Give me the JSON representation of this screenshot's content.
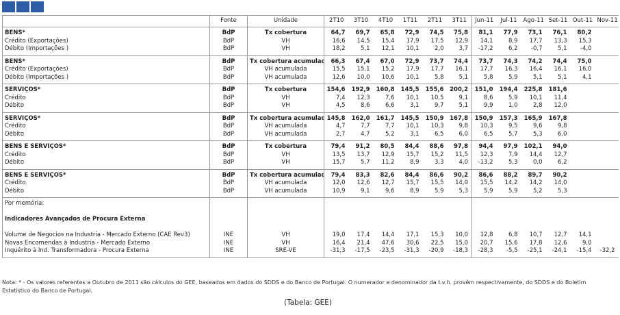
{
  "header": {
    "columns": [
      "Fonte",
      "Unidade",
      "2T10",
      "3T10",
      "4T10",
      "1T11",
      "2T11",
      "3T11",
      "Jun-11",
      "Jul-11",
      "Ago-11",
      "Set-11",
      "Out-11",
      "Nov-11"
    ]
  },
  "sections": [
    {
      "rows": [
        {
          "label": "BENS*",
          "source": "BdP",
          "unit": "Tx cobertura",
          "values": [
            "64,7",
            "69,7",
            "65,8",
            "72,9",
            "74,5",
            "75,8",
            "81,1",
            "77,9",
            "73,1",
            "76,1",
            "80,2",
            null
          ]
        },
        {
          "label": "Crédito (Exportações)",
          "source": "BdP",
          "unit": "VH",
          "values": [
            "16,6",
            "14,5",
            "15,4",
            "17,9",
            "17,5",
            "12,9",
            "14,1",
            "8,9",
            "17,7",
            "13,3",
            "15,3",
            null
          ]
        },
        {
          "label": "Débito (Importações )",
          "source": "BdP",
          "unit": "VH",
          "values": [
            "18,2",
            "5,1",
            "12,1",
            "10,1",
            "2,0",
            "3,7",
            "-17,2",
            "6,2",
            "-0,7",
            "5,1",
            "-4,0",
            null
          ]
        }
      ]
    },
    {
      "rows": [
        {
          "label": "BENS*",
          "source": "BdP",
          "unit": "Tx cobertura acumulada",
          "values": [
            "66,3",
            "67,4",
            "67,0",
            "72,9",
            "73,7",
            "74,4",
            "73,7",
            "74,3",
            "74,2",
            "74,4",
            "75,0",
            null
          ]
        },
        {
          "label": "Crédito (Exportações)",
          "source": "BdP",
          "unit": "VH acumulada",
          "values": [
            "15,5",
            "15,1",
            "15,2",
            "17,9",
            "17,7",
            "16,1",
            "17,7",
            "16,3",
            "16,4",
            "16,1",
            "16,0",
            null
          ]
        },
        {
          "label": "Débito (Importações )",
          "source": "BdP",
          "unit": "VH acumulada",
          "values": [
            "12,6",
            "10,0",
            "10,6",
            "10,1",
            "5,8",
            "5,1",
            "5,8",
            "5,9",
            "5,1",
            "5,1",
            "4,1",
            null
          ]
        }
      ]
    },
    {
      "rows": [
        {
          "label": "SERVIÇOS*",
          "source": "BdP",
          "unit": "Tx cobertura",
          "values": [
            "154,6",
            "192,9",
            "160,8",
            "145,5",
            "155,6",
            "200,2",
            "151,0",
            "194,4",
            "225,8",
            "181,6",
            null,
            null
          ]
        },
        {
          "label": "Crédito",
          "source": "BdP",
          "unit": "VH",
          "values": [
            "7,4",
            "12,3",
            "7,6",
            "10,1",
            "10,5",
            "9,1",
            "8,6",
            "5,9",
            "10,1",
            "11,4",
            null,
            null
          ]
        },
        {
          "label": "Débito",
          "source": "BdP",
          "unit": "VH",
          "values": [
            "4,5",
            "8,6",
            "6,6",
            "3,1",
            "9,7",
            "5,1",
            "9,9",
            "1,0",
            "2,8",
            "12,0",
            null,
            null
          ]
        }
      ]
    },
    {
      "rows": [
        {
          "label": "SERVIÇOS*",
          "source": "BdP",
          "unit": "Tx cobertura acumulada",
          "values": [
            "145,8",
            "162,0",
            "161,7",
            "145,5",
            "150,9",
            "167,8",
            "150,9",
            "157,3",
            "165,9",
            "167,8",
            null,
            null
          ]
        },
        {
          "label": "Crédito",
          "source": "BdP",
          "unit": "VH acumulada",
          "values": [
            "4,7",
            "7,7",
            "7,7",
            "10,1",
            "10,3",
            "9,8",
            "10,3",
            "9,5",
            "9,6",
            "9,8",
            null,
            null
          ]
        },
        {
          "label": "Débito",
          "source": "BdP",
          "unit": "VH acumulada",
          "values": [
            "2,7",
            "4,7",
            "5,2",
            "3,1",
            "6,5",
            "6,0",
            "6,5",
            "5,7",
            "5,3",
            "6,0",
            null,
            null
          ]
        }
      ]
    },
    {
      "rows": [
        {
          "label": "BENS E SERVIÇOS*",
          "source": "BdP",
          "unit": "Tx cobertura",
          "values": [
            "79,4",
            "91,2",
            "80,5",
            "84,4",
            "88,6",
            "97,8",
            "94,4",
            "97,9",
            "102,1",
            "94,0",
            null,
            null
          ]
        },
        {
          "label": "Crédito",
          "source": "BdP",
          "unit": "VH",
          "values": [
            "13,5",
            "13,7",
            "12,9",
            "15,7",
            "15,2",
            "11,5",
            "12,3",
            "7,9",
            "14,4",
            "12,7",
            null,
            null
          ]
        },
        {
          "label": "Débito",
          "source": "BdP",
          "unit": "VH",
          "values": [
            "15,7",
            "5,7",
            "11,2",
            "8,9",
            "3,3",
            "4,0",
            "-13,2",
            "5,3",
            "0,0",
            "6,2",
            null,
            null
          ]
        }
      ]
    },
    {
      "rows": [
        {
          "label": "BENS E SERVIÇOS*",
          "source": "BdP",
          "unit": "Tx cobertura acumulada",
          "values": [
            "79,4",
            "83,3",
            "82,6",
            "84,4",
            "86,6",
            "90,2",
            "86,6",
            "88,2",
            "89,7",
            "90,2",
            null,
            null
          ]
        },
        {
          "label": "Crédito",
          "source": "BdP",
          "unit": "VH acumulada",
          "values": [
            "12,0",
            "12,6",
            "12,7",
            "15,7",
            "15,5",
            "14,0",
            "15,5",
            "14,2",
            "14,2",
            "14,0",
            null,
            null
          ]
        },
        {
          "label": "Débito",
          "source": "BdP",
          "unit": "VH acumulada",
          "values": [
            "10,9",
            "9,1",
            "9,6",
            "8,9",
            "5,9",
            "5,3",
            "5,9",
            "5,9",
            "5,2",
            "5,3",
            null,
            null
          ]
        }
      ]
    }
  ],
  "memo": {
    "title": "Por memória:",
    "subtitle": "Indicadores Avançados de Procura Externa",
    "rows": [
      {
        "label": "Volume de Negocios na Industria - Mercado Externo (CAE Rev3)",
        "source": "INE",
        "unit": "VH",
        "values": [
          "19,0",
          "17,4",
          "14,4",
          "17,1",
          "15,3",
          "10,0",
          "12,8",
          "6,8",
          "10,7",
          "12,7",
          "14,1",
          null
        ]
      },
      {
        "label": "Novas Encomendas à Industria - Mercado Externo",
        "source": "INE",
        "unit": "VH",
        "values": [
          "16,4",
          "21,4",
          "47,6",
          "30,6",
          "22,5",
          "15,0",
          "20,7",
          "15,6",
          "17,8",
          "12,6",
          "9,0",
          null
        ]
      },
      {
        "label": "Inquérito à Ind. Transformadora - Procura Externa",
        "source": "INE",
        "unit": "SRE-VE",
        "values": [
          "-31,3",
          "-17,5",
          "-23,5",
          "-31,3",
          "-20,9",
          "-18,3",
          "-28,3",
          "-5,5",
          "-25,1",
          "-24,1",
          "-15,4",
          "-32,2"
        ]
      }
    ]
  },
  "note": "Nota: * - Os valores referentes a Outubro de 2011 são cálculos do GEE, baseados em dados do SDDS e do Banco de Portugal. O numerador e denominador da t.v.h. provêm respectivamente, do SDDS e do Boletim Estatístico do Banco de Portugal.",
  "caption": "(Tabela: GEE)"
}
